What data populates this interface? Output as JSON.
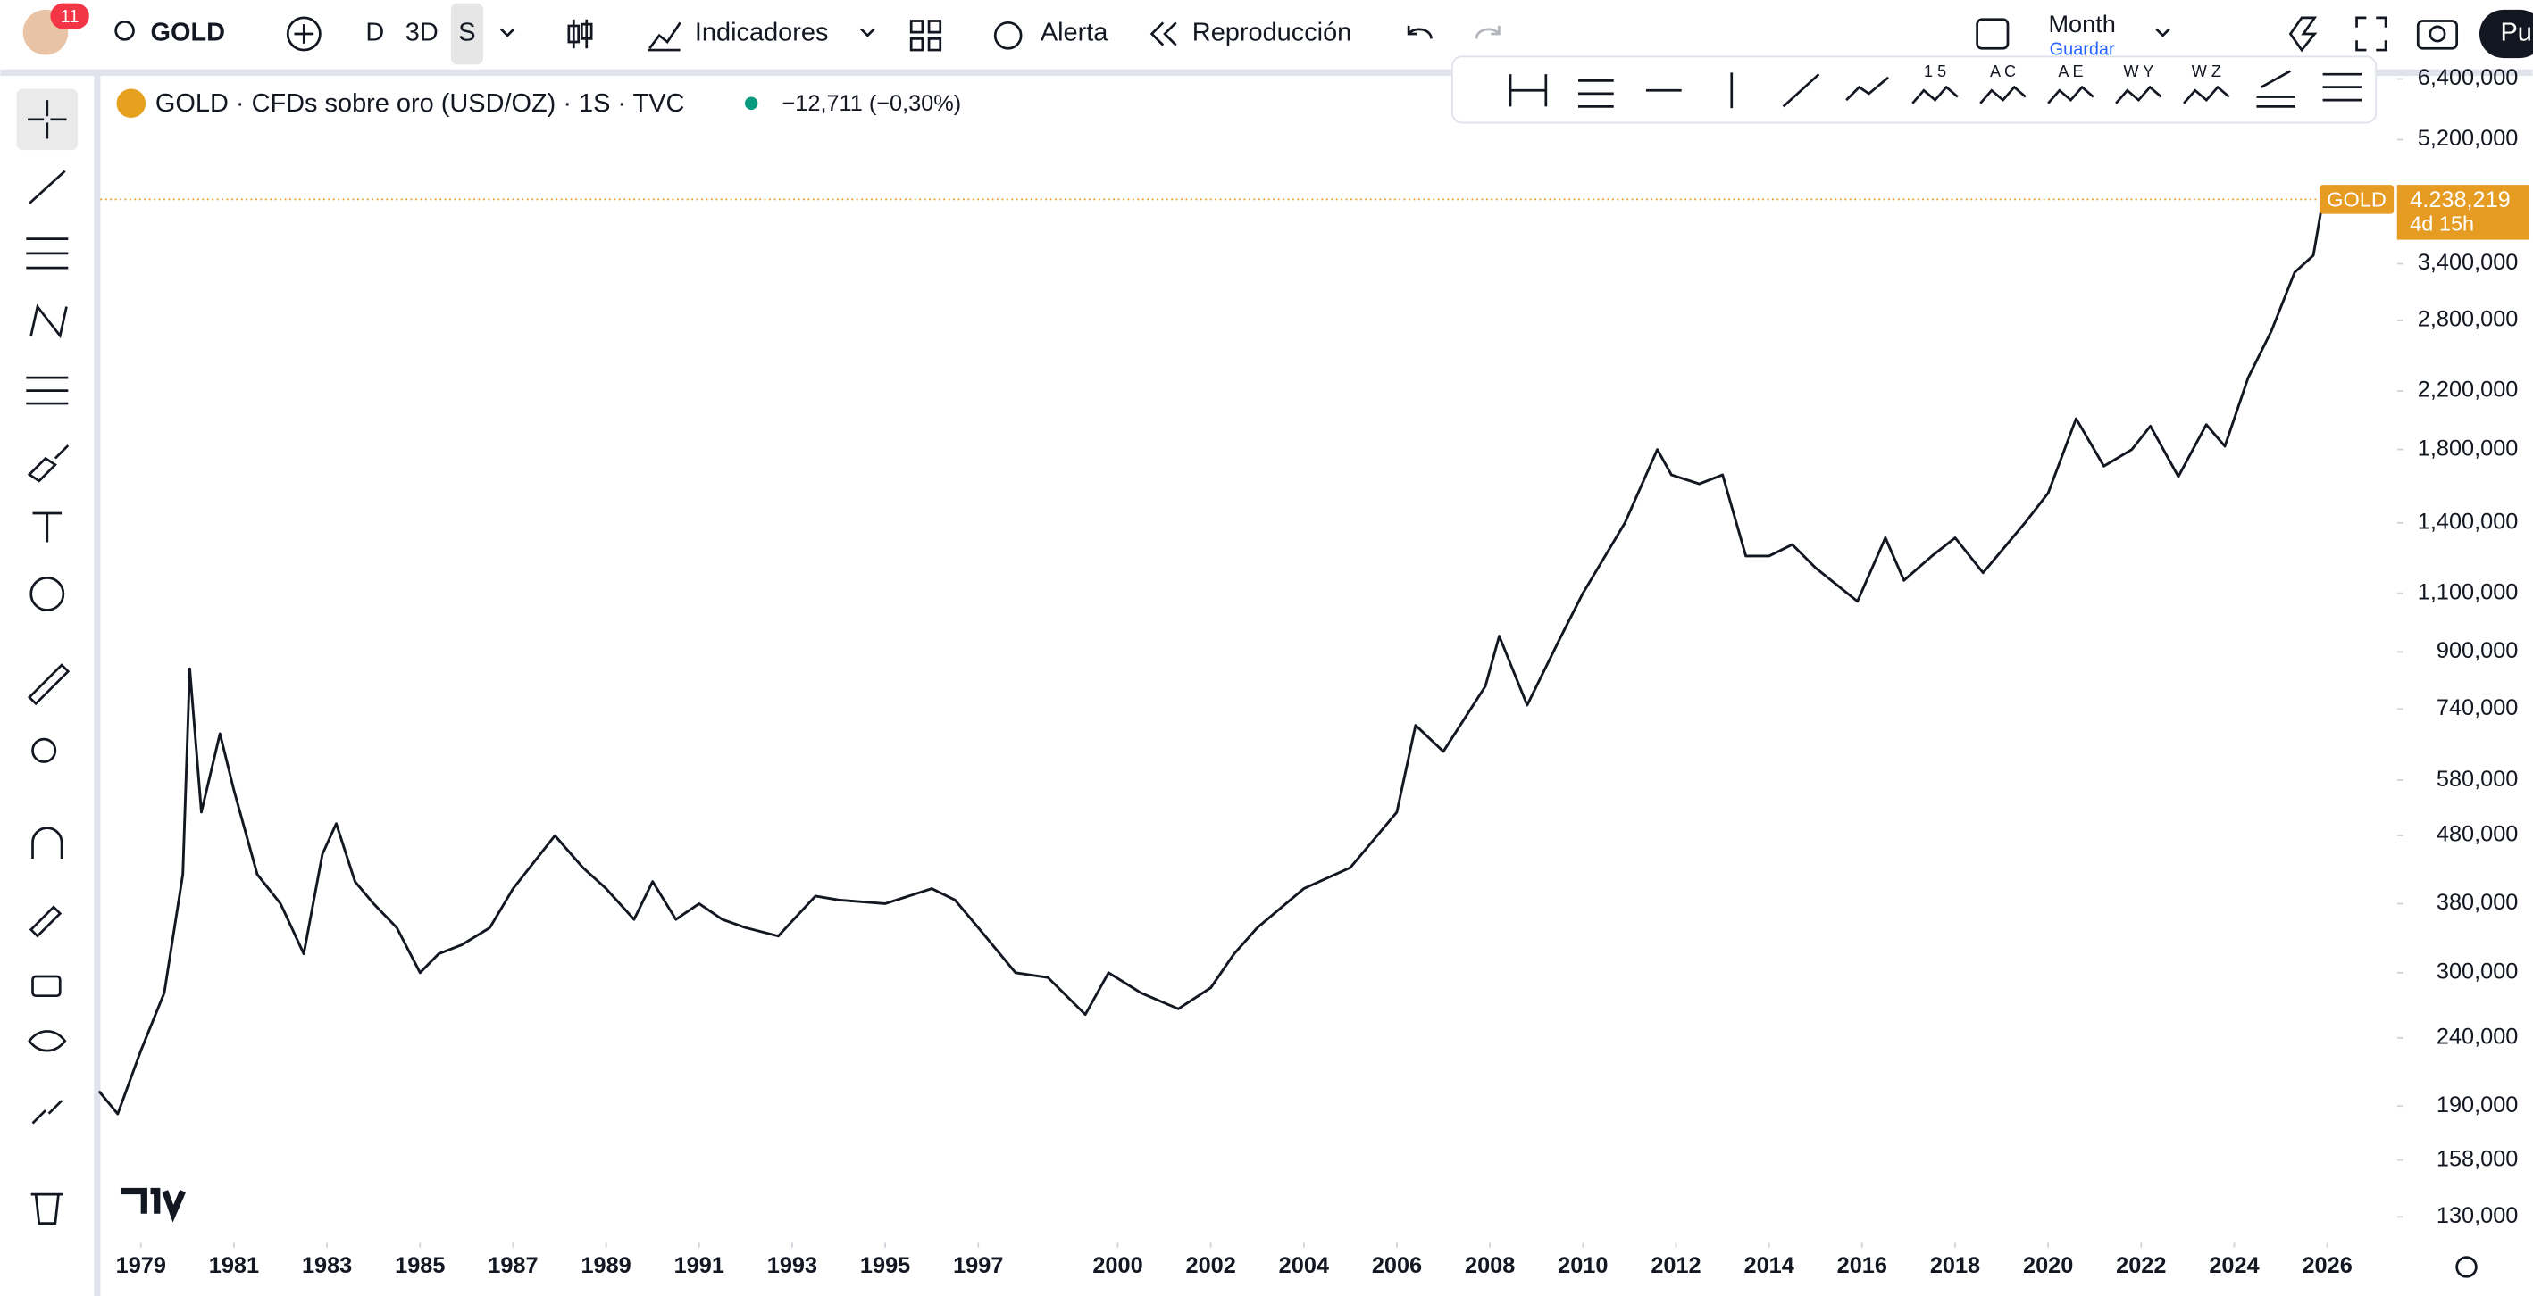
{
  "toolbar": {
    "badge": "11",
    "symbol": "GOLD",
    "intervals": [
      "D",
      "3D",
      "S"
    ],
    "indicators": "Indicadores",
    "alert": "Alerta",
    "replay": "Reproducción",
    "layout": "Month",
    "save": "Guardar",
    "publish": "Pu",
    "pattern_labels": [
      "1 5",
      "A C",
      "A E",
      "W Y",
      "W Z"
    ]
  },
  "chart_data": {
    "type": "line",
    "title": "GOLD · CFDs sobre oro (USD/OZ) · 1S · TVC",
    "change": "−12,711 (−0,30%)",
    "log_scale": true,
    "grid": false,
    "series": [
      {
        "name": "GOLD",
        "color": "#131722",
        "x": [
          1978.1,
          1978.5,
          1979.0,
          1979.5,
          1979.9,
          1980.05,
          1980.3,
          1980.7,
          1981.0,
          1981.5,
          1982.0,
          1982.5,
          1982.9,
          1983.2,
          1983.6,
          1984.0,
          1984.5,
          1985.0,
          1985.4,
          1985.9,
          1986.5,
          1987.0,
          1987.9,
          1988.5,
          1989.0,
          1989.6,
          1990.0,
          1990.5,
          1991.0,
          1991.5,
          1992.0,
          1992.7,
          1993.5,
          1994.0,
          1995.0,
          1996.0,
          1996.5,
          1997.0,
          1997.8,
          1998.5,
          1999.3,
          1999.8,
          2000.5,
          2001.3,
          2002.0,
          2002.5,
          2003.0,
          2004.0,
          2005.0,
          2006.0,
          2006.4,
          2007.0,
          2007.9,
          2008.2,
          2008.8,
          2009.5,
          2010.0,
          2010.9,
          2011.6,
          2011.9,
          2012.5,
          2013.0,
          2013.5,
          2014.0,
          2014.5,
          2015.0,
          2015.9,
          2016.5,
          2016.9,
          2017.5,
          2018.0,
          2018.6,
          2019.5,
          2020.0,
          2020.6,
          2021.2,
          2021.8,
          2022.2,
          2022.8,
          2023.4,
          2023.8,
          2024.3,
          2024.8,
          2025.3,
          2025.7,
          2025.9
        ],
        "values": [
          200,
          185,
          230,
          280,
          420,
          850,
          520,
          680,
          560,
          420,
          380,
          320,
          450,
          500,
          410,
          380,
          350,
          300,
          320,
          330,
          350,
          400,
          480,
          430,
          400,
          360,
          410,
          360,
          380,
          360,
          350,
          340,
          390,
          385,
          380,
          400,
          385,
          350,
          300,
          295,
          260,
          300,
          280,
          265,
          285,
          320,
          350,
          400,
          430,
          520,
          700,
          640,
          800,
          950,
          750,
          940,
          1100,
          1400,
          1800,
          1650,
          1600,
          1650,
          1250,
          1250,
          1300,
          1200,
          1070,
          1330,
          1150,
          1250,
          1330,
          1180,
          1400,
          1550,
          2000,
          1700,
          1800,
          1950,
          1640,
          1960,
          1820,
          2300,
          2700,
          3300,
          3500,
          4200
        ]
      }
    ],
    "price_line": {
      "name": "GOLD",
      "value": 4238.219,
      "label": "4.238,219",
      "countdown": "4d 15h",
      "color": "#e69b22"
    },
    "xlim": [
      1978.13,
      2027.5
    ],
    "xticks": [
      1979,
      1981,
      1983,
      1985,
      1987,
      1989,
      1991,
      1993,
      1995,
      1997,
      2000,
      2002,
      2004,
      2006,
      2008,
      2010,
      2012,
      2014,
      2016,
      2018,
      2020,
      2022,
      2024,
      2026
    ],
    "ylim": [
      119,
      6470
    ],
    "yticks": [
      {
        "value": 130,
        "label": "130,000"
      },
      {
        "value": 158,
        "label": "158,000"
      },
      {
        "value": 190,
        "label": "190,000"
      },
      {
        "value": 240,
        "label": "240,000"
      },
      {
        "value": 300,
        "label": "300,000"
      },
      {
        "value": 380,
        "label": "380,000"
      },
      {
        "value": 480,
        "label": "480,000"
      },
      {
        "value": 580,
        "label": "580,000"
      },
      {
        "value": 740,
        "label": "740,000"
      },
      {
        "value": 900,
        "label": "900,000"
      },
      {
        "value": 1100,
        "label": "1,100,000"
      },
      {
        "value": 1400,
        "label": "1,400,000"
      },
      {
        "value": 1800,
        "label": "1,800,000"
      },
      {
        "value": 2200,
        "label": "2,200,000"
      },
      {
        "value": 2800,
        "label": "2,800,000"
      },
      {
        "value": 3400,
        "label": "3,400,000"
      },
      {
        "value": 5200,
        "label": "5,200,000"
      },
      {
        "value": 6400,
        "label": "6,400,000"
      }
    ]
  }
}
